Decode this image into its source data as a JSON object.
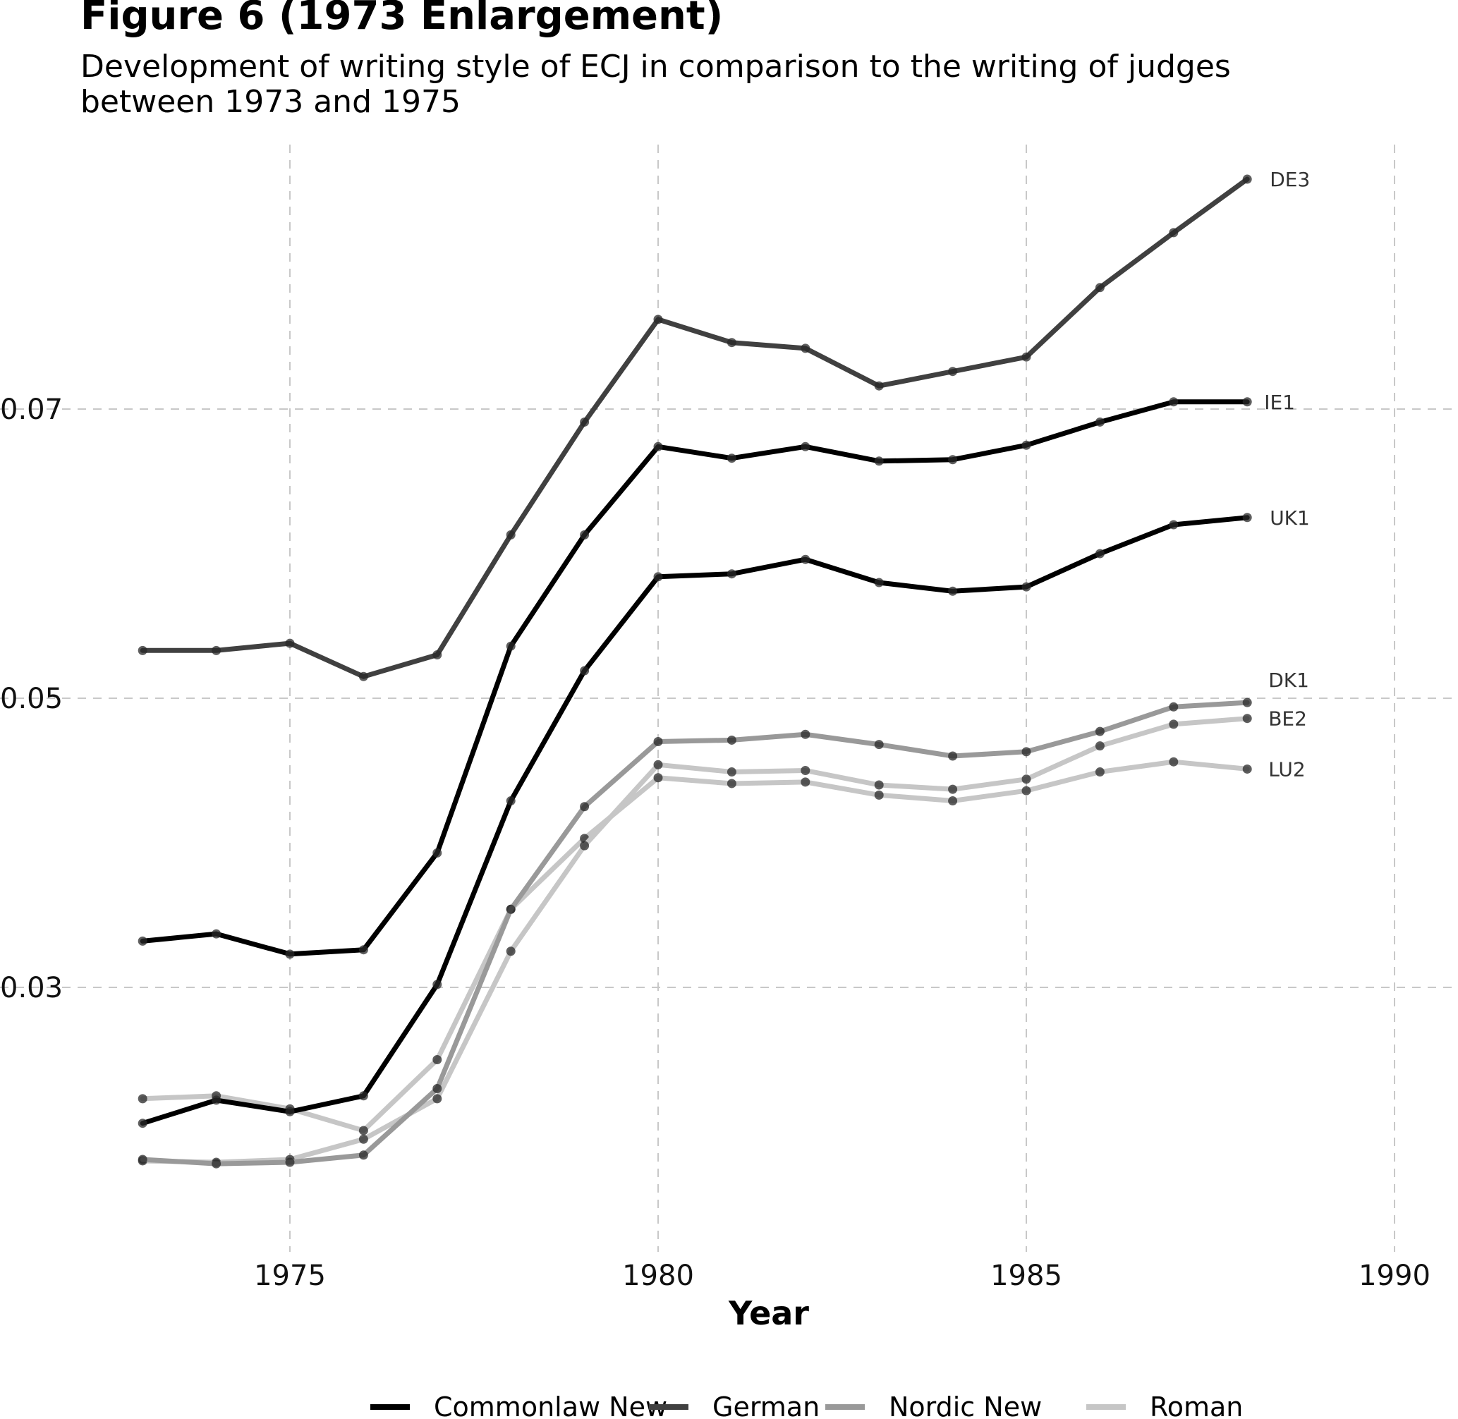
{
  "title": "Figure 6 (1973 Enlargement)",
  "subtitle": "Development of writing style of ECJ in comparison to the writing of judges\nbetween 1973 and 1975",
  "chart_data": {
    "type": "line",
    "xlabel": "Year",
    "ylabel": "",
    "xlim": [
      1972.9,
      1990.2
    ],
    "ylim": [
      0.0127,
      0.0888
    ],
    "x_ticks": [
      1975,
      1980,
      1985,
      1990
    ],
    "x_tick_labels": [
      "1975",
      "1980",
      "1985",
      "1990"
    ],
    "y_ticks": [
      0.03,
      0.05,
      0.07
    ],
    "y_tick_labels": [
      "0.03",
      "0.05",
      "0.07"
    ],
    "grid": true,
    "legend_position": "bottom",
    "x": [
      1973,
      1974,
      1975,
      1976,
      1977,
      1978,
      1979,
      1980,
      1981,
      1982,
      1983,
      1984,
      1985,
      1986,
      1987,
      1988
    ],
    "series": [
      {
        "name": "Commonlaw New",
        "label": "IE1",
        "color": "#000000",
        "values": [
          0.0332,
          0.0337,
          0.0323,
          0.0326,
          0.0393,
          0.0536,
          0.0613,
          0.0674,
          0.0666,
          0.0674,
          0.0664,
          0.0665,
          0.0675,
          0.0691,
          0.0705,
          0.0705
        ]
      },
      {
        "name": "Commonlaw New",
        "label": "UK1",
        "color": "#000000",
        "values": [
          0.0206,
          0.0222,
          0.0214,
          0.0225,
          0.0302,
          0.0429,
          0.0519,
          0.0584,
          0.0586,
          0.0596,
          0.058,
          0.0574,
          0.0577,
          0.06,
          0.062,
          0.0625
        ]
      },
      {
        "name": "German",
        "label": "DE3",
        "color": "#404040",
        "values": [
          0.0533,
          0.0533,
          0.0538,
          0.0515,
          0.053,
          0.0613,
          0.0691,
          0.0762,
          0.0746,
          0.0742,
          0.0716,
          0.0726,
          0.0736,
          0.0784,
          0.0822,
          0.0859
        ]
      },
      {
        "name": "Nordic New",
        "label": "DK1",
        "color": "#999999",
        "values": [
          0.0181,
          0.0178,
          0.0179,
          0.0184,
          0.023,
          0.0354,
          0.0425,
          0.047,
          0.0471,
          0.0475,
          0.0468,
          0.046,
          0.0463,
          0.0477,
          0.0494,
          0.0497
        ]
      },
      {
        "name": "Roman",
        "label": "BE2",
        "color": "#c6c6c6",
        "values": [
          0.018,
          0.0179,
          0.0181,
          0.0195,
          0.0223,
          0.0325,
          0.0398,
          0.0454,
          0.0449,
          0.045,
          0.044,
          0.0437,
          0.0444,
          0.0467,
          0.0482,
          0.0486
        ]
      },
      {
        "name": "Roman",
        "label": "LU2",
        "color": "#c6c6c6",
        "values": [
          0.0223,
          0.0225,
          0.0216,
          0.0201,
          0.025,
          0.0354,
          0.0403,
          0.0445,
          0.0441,
          0.0442,
          0.0433,
          0.0429,
          0.0436,
          0.0449,
          0.0456,
          0.0451
        ]
      }
    ],
    "legend": [
      {
        "name": "Commonlaw New",
        "color": "#000000"
      },
      {
        "name": "German",
        "color": "#404040"
      },
      {
        "name": "Nordic New",
        "color": "#999999"
      },
      {
        "name": "Roman",
        "color": "#c6c6c6"
      }
    ]
  }
}
